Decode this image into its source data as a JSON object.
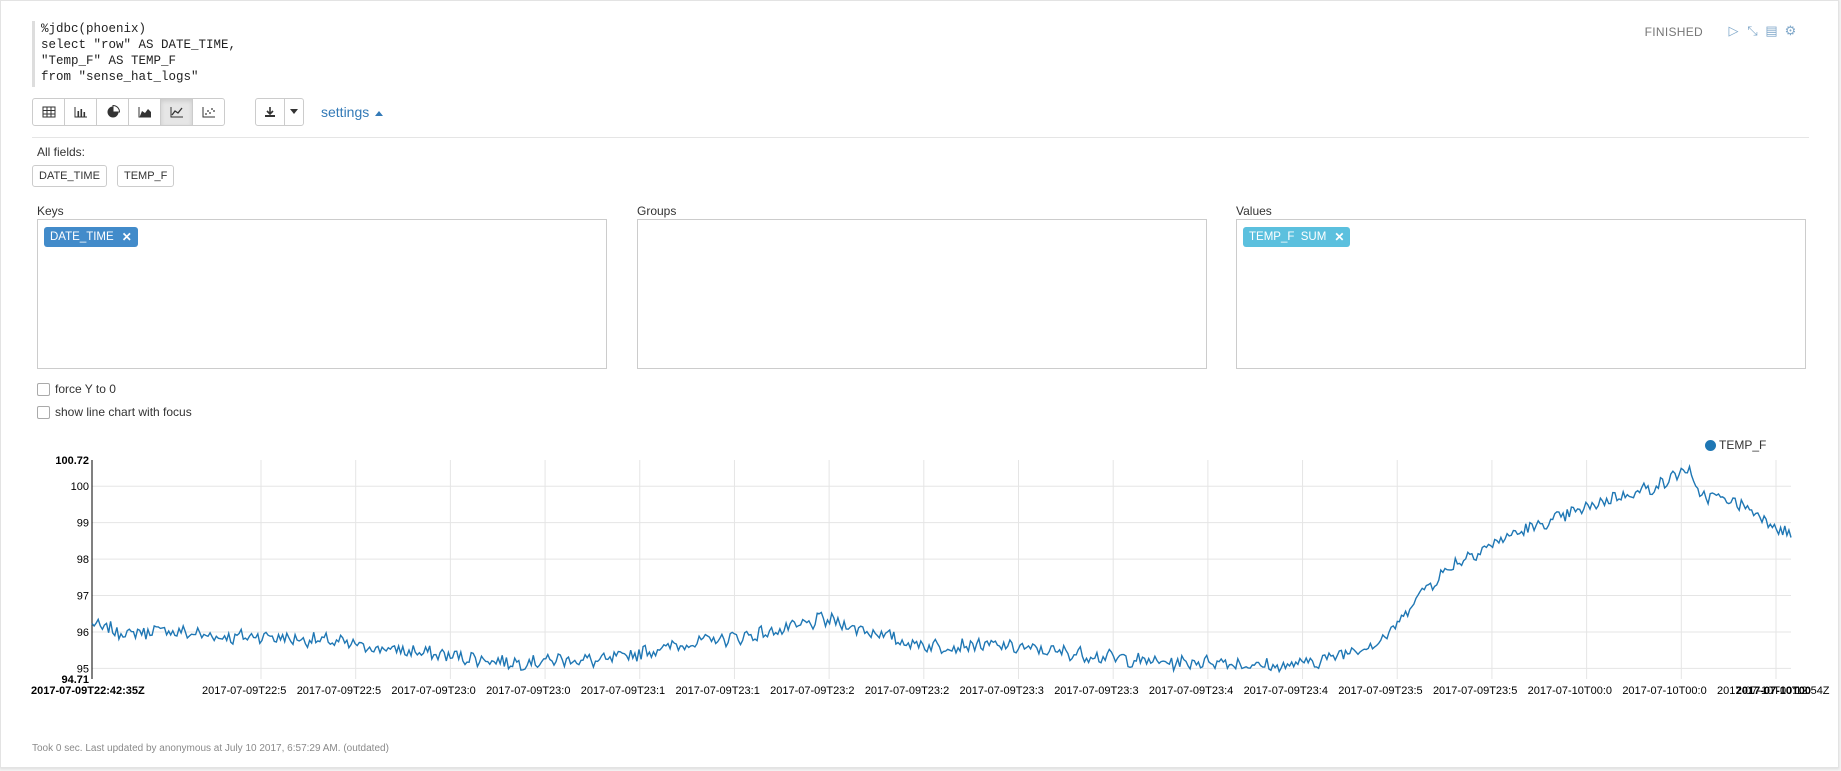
{
  "editor": {
    "code": "%jdbc(phoenix)\nselect \"row\" AS DATE_TIME,\n\"Temp_F\" AS TEMP_F\nfrom \"sense_hat_logs\""
  },
  "status": {
    "text": "FINISHED"
  },
  "controls": [
    {
      "name": "run-paragraph-icon",
      "glyph": "▷"
    },
    {
      "name": "hide-output-icon",
      "glyph": "⤡"
    },
    {
      "name": "show-editor-icon",
      "glyph": "▤"
    },
    {
      "name": "settings-gear-icon",
      "glyph": "⚙"
    }
  ],
  "toolbar": {
    "buttons": [
      {
        "name": "table-view-button",
        "icon": "table-icon"
      },
      {
        "name": "bar-chart-button",
        "icon": "bar-chart-icon"
      },
      {
        "name": "pie-chart-button",
        "icon": "pie-chart-icon"
      },
      {
        "name": "area-chart-button",
        "icon": "area-chart-icon"
      },
      {
        "name": "line-chart-button",
        "icon": "line-chart-icon",
        "active": true
      },
      {
        "name": "scatter-chart-button",
        "icon": "scatter-chart-icon"
      }
    ],
    "settings_label": "settings"
  },
  "pivot": {
    "all_fields_label": "All fields:",
    "fields": [
      "DATE_TIME",
      "TEMP_F"
    ],
    "keys_label": "Keys",
    "groups_label": "Groups",
    "values_label": "Values",
    "keys": [
      "DATE_TIME"
    ],
    "values": [
      "TEMP_F  SUM"
    ],
    "key_color": "#428bca",
    "value_color": "#5bc0de"
  },
  "options": {
    "force_y_label": "force Y to 0",
    "focus_label": "show line chart with focus"
  },
  "chart_data": {
    "type": "line",
    "series": [
      {
        "name": "TEMP_F",
        "color": "#1f77b4",
        "shape": [
          [
            0.0,
            96.2
          ],
          [
            0.02,
            95.95
          ],
          [
            0.04,
            96.05
          ],
          [
            0.06,
            95.95
          ],
          [
            0.08,
            95.85
          ],
          [
            0.1,
            95.9
          ],
          [
            0.12,
            95.8
          ],
          [
            0.14,
            95.75
          ],
          [
            0.16,
            95.6
          ],
          [
            0.18,
            95.5
          ],
          [
            0.2,
            95.4
          ],
          [
            0.22,
            95.3
          ],
          [
            0.24,
            95.2
          ],
          [
            0.25,
            95.15
          ],
          [
            0.26,
            95.2
          ],
          [
            0.28,
            95.25
          ],
          [
            0.3,
            95.2
          ],
          [
            0.32,
            95.4
          ],
          [
            0.34,
            95.6
          ],
          [
            0.36,
            95.75
          ],
          [
            0.38,
            95.85
          ],
          [
            0.4,
            96.0
          ],
          [
            0.42,
            96.2
          ],
          [
            0.43,
            96.35
          ],
          [
            0.44,
            96.25
          ],
          [
            0.45,
            96.1
          ],
          [
            0.46,
            96.0
          ],
          [
            0.47,
            95.85
          ],
          [
            0.48,
            95.7
          ],
          [
            0.5,
            95.6
          ],
          [
            0.52,
            95.65
          ],
          [
            0.54,
            95.6
          ],
          [
            0.56,
            95.5
          ],
          [
            0.58,
            95.4
          ],
          [
            0.6,
            95.3
          ],
          [
            0.62,
            95.2
          ],
          [
            0.64,
            95.15
          ],
          [
            0.66,
            95.2
          ],
          [
            0.68,
            95.1
          ],
          [
            0.7,
            95.05
          ],
          [
            0.72,
            95.2
          ],
          [
            0.73,
            95.3
          ],
          [
            0.74,
            95.5
          ],
          [
            0.75,
            95.6
          ],
          [
            0.76,
            95.8
          ],
          [
            0.77,
            96.3
          ],
          [
            0.78,
            97.0
          ],
          [
            0.79,
            97.4
          ],
          [
            0.8,
            97.8
          ],
          [
            0.81,
            98.1
          ],
          [
            0.82,
            98.3
          ],
          [
            0.83,
            98.55
          ],
          [
            0.84,
            98.75
          ],
          [
            0.85,
            98.9
          ],
          [
            0.86,
            99.05
          ],
          [
            0.87,
            99.25
          ],
          [
            0.88,
            99.4
          ],
          [
            0.89,
            99.6
          ],
          [
            0.9,
            99.75
          ],
          [
            0.91,
            99.85
          ],
          [
            0.92,
            100.0
          ],
          [
            0.93,
            100.2
          ],
          [
            0.935,
            100.45
          ],
          [
            0.94,
            100.4
          ],
          [
            0.945,
            99.8
          ],
          [
            0.955,
            99.7
          ],
          [
            0.965,
            99.6
          ],
          [
            0.975,
            99.4
          ],
          [
            0.985,
            99.1
          ],
          [
            0.995,
            98.8
          ],
          [
            1.005,
            98.45
          ],
          [
            1.015,
            98.3
          ],
          [
            1.025,
            98.0
          ],
          [
            1.035,
            97.9
          ],
          [
            1.045,
            97.8
          ]
        ]
      }
    ],
    "y_ticks": [
      "95",
      "96",
      "97",
      "98",
      "99",
      "100"
    ],
    "y_max_label": "100.72",
    "y_min_label": "94.71",
    "ylim": [
      94.71,
      100.72
    ],
    "x_first_label": "2017-07-09T22:42:35Z",
    "x_last_label": "2017-07-10T00",
    "x_overlap_labels": [
      "2017-07-09T22:5",
      "2017-07-09T22:5",
      "2017-07-09T23:0",
      "2017-07-09T23:0",
      "2017-07-09T23:1",
      "2017-07-09T23:1",
      "2017-07-09T23:2",
      "2017-07-09T23:2",
      "2017-07-09T23:3",
      "2017-07-09T23:3",
      "2017-07-09T23:4",
      "2017-07-09T23:4",
      "2017-07-09T23:5",
      "2017-07-09T23:5",
      "2017-07-10T00:0",
      "2017-07-10T00:0",
      "2017-07-10T00:12:54Z"
    ],
    "grid": true,
    "legend": "top-right"
  },
  "footer": {
    "text": "Took 0 sec. Last updated by anonymous at July 10 2017, 6:57:29 AM. (outdated)"
  }
}
